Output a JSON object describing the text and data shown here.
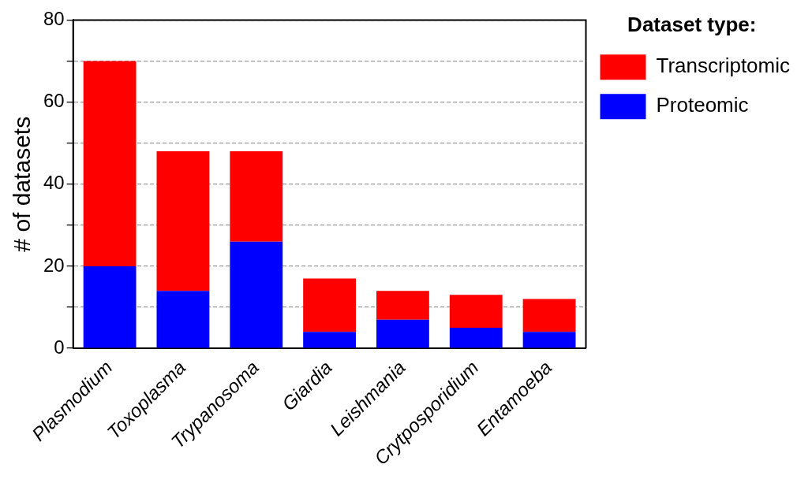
{
  "chart_data": {
    "type": "bar",
    "stacked": true,
    "ylabel": "# of datasets",
    "legend_title": "Dataset type:",
    "legend": "right",
    "categories": [
      "Plasmodium",
      "Toxoplasma",
      "Trypanosoma",
      "Giardia",
      "Leishmania",
      "Crytposporidium",
      "Entamoeba"
    ],
    "series": [
      {
        "name": "Proteomic",
        "color": "#0000ff",
        "values": [
          20,
          14,
          26,
          4,
          7,
          5,
          4
        ]
      },
      {
        "name": "Transcriptomic",
        "color": "#ff0000",
        "values": [
          50,
          34,
          22,
          13,
          7,
          8,
          8
        ]
      }
    ],
    "ylim": [
      0,
      80
    ],
    "yticks": [
      0,
      {
        "value": 10,
        "label": null
      },
      20,
      {
        "value": 30,
        "label": null
      },
      40,
      {
        "value": 50,
        "label": null
      },
      60,
      {
        "value": 70,
        "label": null
      },
      80
    ],
    "grid": "y"
  }
}
